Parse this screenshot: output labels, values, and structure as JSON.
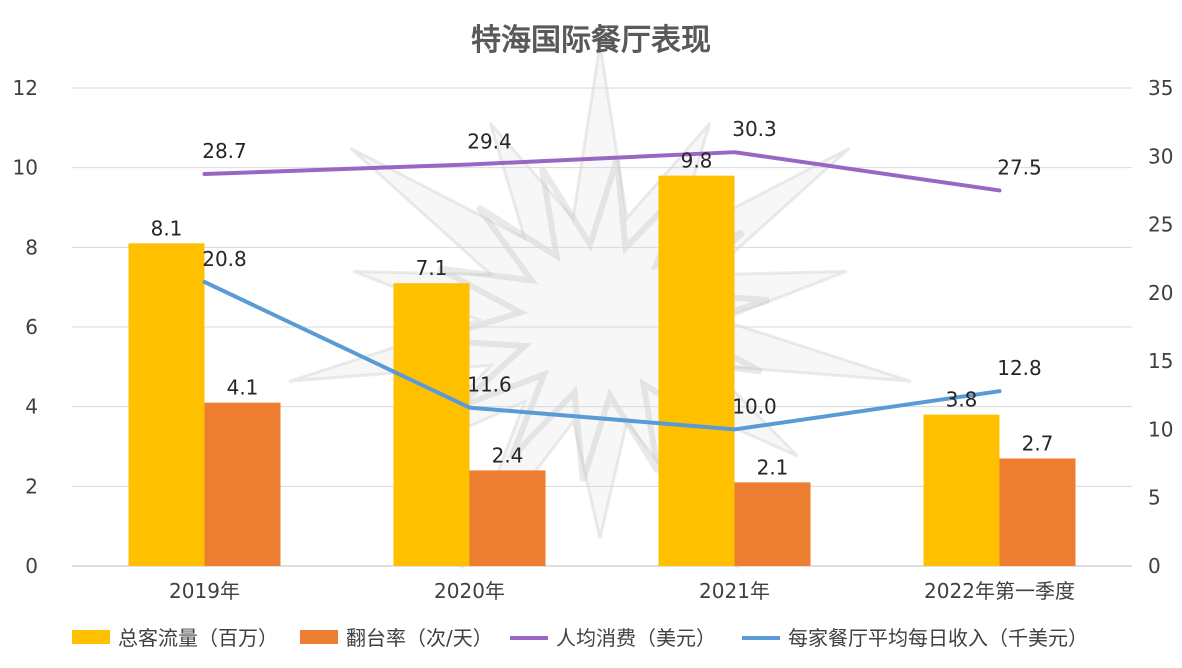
{
  "chart_data": {
    "type": "bar",
    "title": "特海国际餐厅表现",
    "categories": [
      "2019年",
      "2020年",
      "2021年",
      "2022年第一季度"
    ],
    "series": [
      {
        "name": "总客流量（百万）",
        "kind": "bar",
        "axis": "left",
        "color": "#FFC000",
        "values": [
          8.1,
          7.1,
          9.8,
          3.8
        ]
      },
      {
        "name": "翻台率（次/天）",
        "kind": "bar",
        "axis": "left",
        "color": "#ED7D31",
        "values": [
          4.1,
          2.4,
          2.1,
          2.7
        ]
      },
      {
        "name": "人均消费（美元）",
        "kind": "line",
        "axis": "right",
        "color": "#9966C2",
        "values": [
          28.7,
          29.4,
          30.3,
          27.5
        ]
      },
      {
        "name": "每家餐厅平均每日收入（千美元）",
        "kind": "line",
        "axis": "right",
        "color": "#5B9BD5",
        "values": [
          20.8,
          11.6,
          10.0,
          12.8
        ]
      }
    ],
    "y_left": {
      "min": 0,
      "max": 12,
      "step": 2,
      "ticks": [
        "0",
        "2",
        "4",
        "6",
        "8",
        "10",
        "12"
      ]
    },
    "y_right": {
      "min": 0,
      "max": 35,
      "step": 5,
      "ticks": [
        "0",
        "5",
        "10",
        "15",
        "20",
        "25",
        "30",
        "35"
      ]
    },
    "data_labels": {
      "总客流量（百万）": [
        "8.1",
        "7.1",
        "9.8",
        "3.8"
      ],
      "翻台率（次/天）": [
        "4.1",
        "2.4",
        "2.1",
        "2.7"
      ],
      "人均消费（美元）": [
        "28.7",
        "29.4",
        "30.3",
        "27.5"
      ],
      "每家餐厅平均每日收入（千美元）": [
        "20.8",
        "11.6",
        "10.0",
        "12.8"
      ]
    },
    "grid": true,
    "legend_position": "bottom"
  }
}
